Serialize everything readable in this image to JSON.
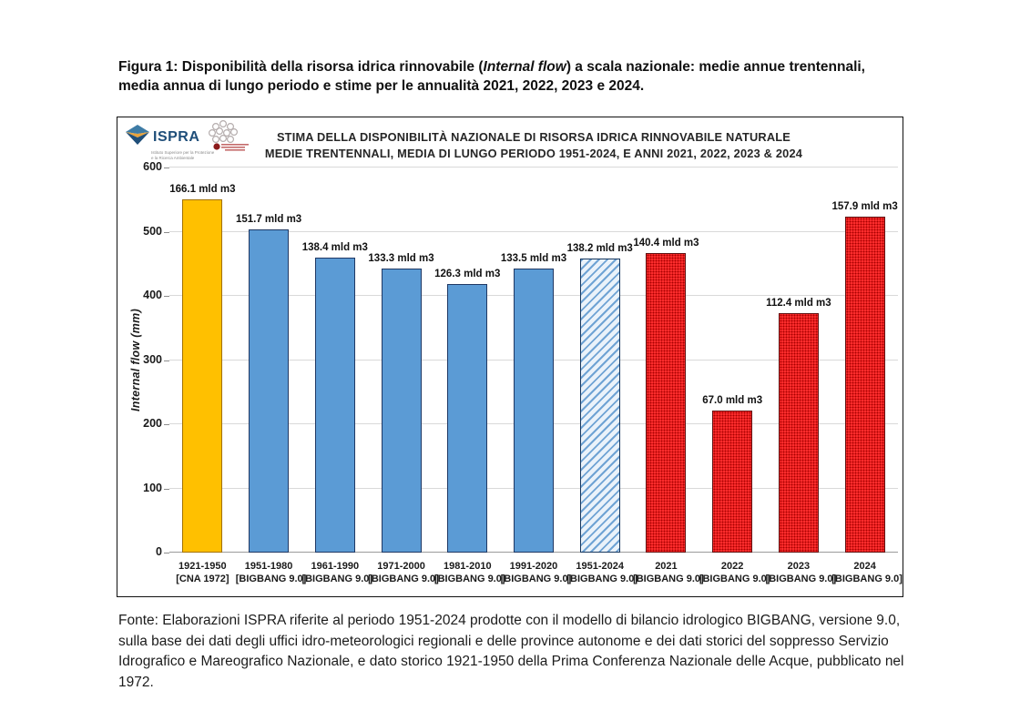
{
  "caption": {
    "text_start": "Figura 1: Disponibilità della risorsa idrica rinnovabile (",
    "italic_term": "Internal flow",
    "text_end": ") a scala nazionale: medie annue trentennali, media annua di lungo periodo e stime per le annualità 2021, 2022, 2023 e 2024."
  },
  "source_note": "Fonte: Elaborazioni ISPRA riferite al periodo 1951-2024 prodotte con il modello di bilancio idrologico BIGBANG, versione 9.0, sulla base dei dati degli uffici idro-meteorologici regionali e delle province autonome e dei dati storici del soppresso Servizio Idrografico e Mareografico Nazionale, e dato storico 1921-1950 della Prima Conferenza Nazionale delle Acque, pubblicato nel 1972.",
  "logos": {
    "ispra_name": "ISPRA",
    "ispra_subtitle_line1": "Istituto Superiore per la Protezione",
    "ispra_subtitle_line2": "e la Ricerca Ambientale"
  },
  "chart_data": {
    "type": "bar",
    "title_line1": "STIMA DELLA DISPONIBILITÀ NAZIONALE DI RISORSA IDRICA RINNOVABILE NATURALE",
    "title_line2": "MEDIE TRENTENNALI, MEDIA DI LUNGO PERIODO 1951-2024, E ANNI 2021, 2022, 2023 & 2024",
    "ylabel": "Internal flow (mm)",
    "ylim": [
      0,
      600
    ],
    "yticks": [
      0,
      100,
      200,
      300,
      400,
      500,
      600
    ],
    "grid": true,
    "legend": "none",
    "value_unit": "mld m3",
    "bars": [
      {
        "category": "1921-1950",
        "source": "[CNA 1972]",
        "label": "166.1 mld m3",
        "value_mld_m3": 166.1,
        "value_mm": 551,
        "style": "yellow-solid"
      },
      {
        "category": "1951-1980",
        "source": "[BIGBANG 9.0]",
        "label": "151.7 mld m3",
        "value_mld_m3": 151.7,
        "value_mm": 503,
        "style": "blue-solid"
      },
      {
        "category": "1961-1990",
        "source": "[BIGBANG 9.0]",
        "label": "138.4 mld m3",
        "value_mld_m3": 138.4,
        "value_mm": 459,
        "style": "blue-solid"
      },
      {
        "category": "1971-2000",
        "source": "[BIGBANG 9.0]",
        "label": "133.3 mld m3",
        "value_mld_m3": 133.3,
        "value_mm": 442,
        "style": "blue-solid"
      },
      {
        "category": "1981-2010",
        "source": "[BIGBANG 9.0]",
        "label": "126.3 mld m3",
        "value_mld_m3": 126.3,
        "value_mm": 419,
        "style": "blue-solid"
      },
      {
        "category": "1991-2020",
        "source": "[BIGBANG 9.0]",
        "label": "133.5 mld m3",
        "value_mld_m3": 133.5,
        "value_mm": 443,
        "style": "blue-solid"
      },
      {
        "category": "1951-2024",
        "source": "[BIGBANG 9.0]",
        "label": "138.2 mld m3",
        "value_mld_m3": 138.2,
        "value_mm": 458,
        "style": "blue-hatched"
      },
      {
        "category": "2021",
        "source": "[BIGBANG 9.0]",
        "label": "140.4 mld m3",
        "value_mld_m3": 140.4,
        "value_mm": 466,
        "style": "red-dotted"
      },
      {
        "category": "2022",
        "source": "[BIGBANG 9.0]",
        "label": "67.0 mld m3",
        "value_mld_m3": 67.0,
        "value_mm": 222,
        "style": "red-dotted"
      },
      {
        "category": "2023",
        "source": "[BIGBANG 9.0]",
        "label": "112.4 mld m3",
        "value_mld_m3": 112.4,
        "value_mm": 373,
        "style": "red-dotted"
      },
      {
        "category": "2024",
        "source": "[BIGBANG 9.0]",
        "label": "157.9 mld m3",
        "value_mld_m3": 157.9,
        "value_mm": 524,
        "style": "red-dotted"
      }
    ],
    "colors": {
      "yellow_fill": "#FFC000",
      "yellow_border": "#A27100",
      "blue_fill": "#5B9BD5",
      "blue_border": "#1F3864",
      "hatch_bg": "#EAF2FA",
      "hatch_stripe": "#6FA3D4",
      "hatch_border": "#17375E",
      "red_fill": "#FF2E2E",
      "red_dot": "#A80000",
      "red_border": "#5F1010",
      "gridline": "#D9D9D9",
      "text": "#1A1A1A"
    }
  }
}
